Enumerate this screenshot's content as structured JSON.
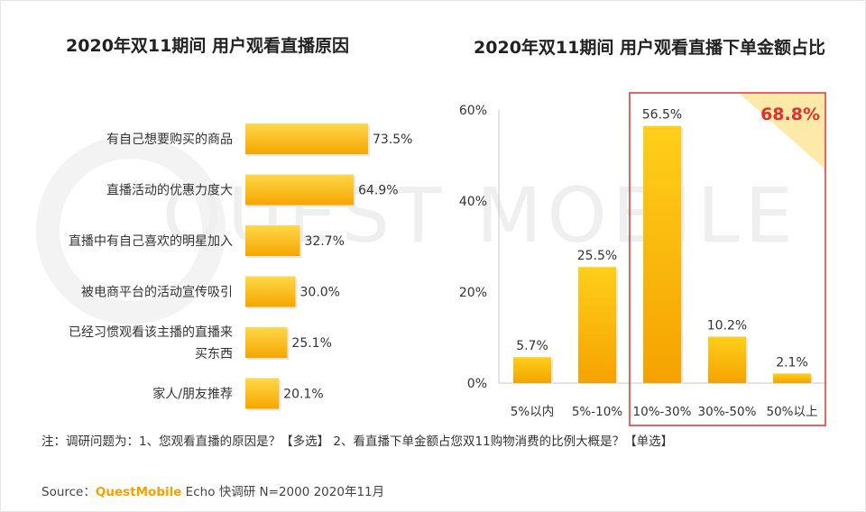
{
  "left_title": "2020年双11期间 用户观看直播原因",
  "right_title": "2020年双11期间 用户观看直播下单金额占比",
  "highlight_total": "68.8%",
  "watermark": "QUEST MOBILE",
  "note": "注：调研问题为：1、您观看直播的原因是？【多选】 2、看直播下单金额占您双11购物消费的比例大概是？【单选】",
  "source": {
    "prefix": "Source：",
    "brand": "QuestMobile",
    "suffix": " Echo 快调研 N=2000 2020年11月"
  },
  "colors": {
    "bar_top": "#ffd200",
    "bar_bottom": "#f5a600",
    "highlight": "#e03030"
  },
  "chart_data": [
    {
      "type": "bar",
      "orientation": "horizontal",
      "title": "2020年双11期间 用户观看直播原因",
      "categories": [
        "有自己想要购买的商品",
        "直播活动的优惠力度大",
        "直播中有自己喜欢的明星加入",
        "被电商平台的活动宣传吸引",
        "已经习惯观看该主播的直播来买东西",
        "家人/朋友推荐"
      ],
      "category_labels": [
        [
          "有自己想要购买的商品"
        ],
        [
          "直播活动的优惠力度大"
        ],
        [
          "直播中有自己喜欢的明星加入"
        ],
        [
          "被电商平台的活动宣传吸引"
        ],
        [
          "已经习惯观看该主播的直播来",
          "买东西"
        ],
        [
          "家人/朋友推荐"
        ]
      ],
      "values": [
        73.5,
        64.9,
        32.7,
        30.0,
        25.1,
        20.1
      ],
      "value_labels": [
        "73.5%",
        "64.9%",
        "32.7%",
        "30.0%",
        "25.1%",
        "20.1%"
      ]
    },
    {
      "type": "bar",
      "orientation": "vertical",
      "title": "2020年双11期间 用户观看直播下单金额占比",
      "categories": [
        "5%以内",
        "5%-10%",
        "10%-30%",
        "30%-50%",
        "50%以上"
      ],
      "values": [
        5.7,
        25.5,
        56.5,
        10.2,
        2.1
      ],
      "value_labels": [
        "5.7%",
        "25.5%",
        "56.5%",
        "10.2%",
        "2.1%"
      ],
      "ylim": [
        0,
        60
      ],
      "yticks": [
        0,
        20,
        40,
        60
      ],
      "ytick_labels": [
        "0%",
        "20%",
        "40%",
        "60%"
      ],
      "highlighted_categories": [
        "10%-30%",
        "30%-50%",
        "50%以上"
      ],
      "highlight_total": "68.8%"
    }
  ]
}
